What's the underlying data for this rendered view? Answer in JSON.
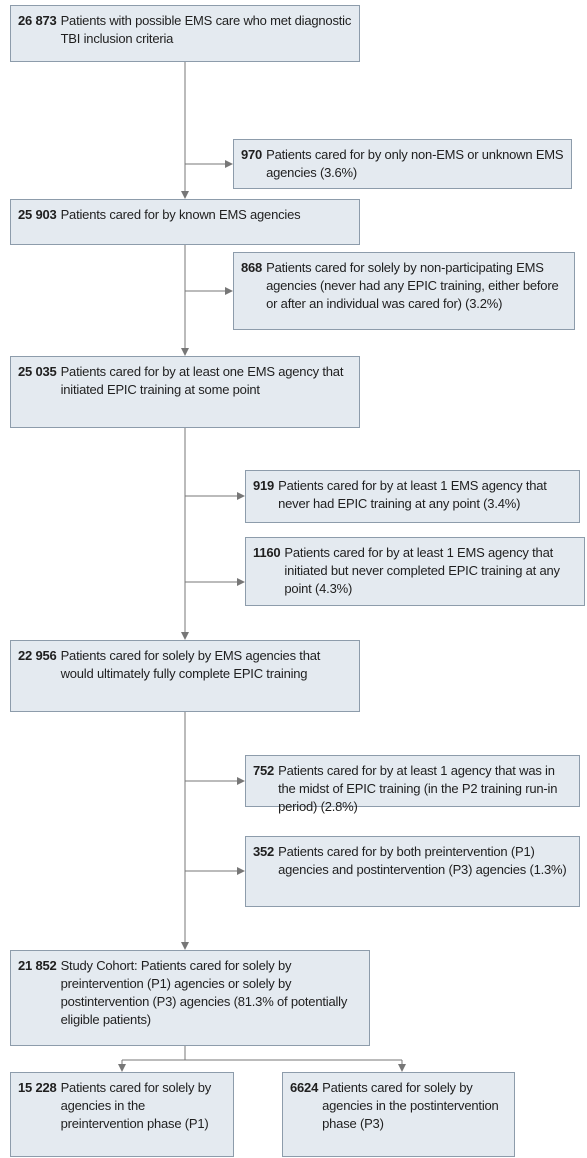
{
  "nodes": [
    {
      "count": "26 873",
      "text": "Patients with possible EMS care who met diagnostic TBI inclusion criteria"
    },
    {
      "count": "970",
      "text": "Patients cared for by only non-EMS or unknown EMS agencies (3.6%)"
    },
    {
      "count": "25 903",
      "text": "Patients cared for by known EMS agencies"
    },
    {
      "count": "868",
      "text": "Patients cared for solely by non-participating EMS agencies (never had any EPIC training, either before or after an individual was cared for) (3.2%)"
    },
    {
      "count": "25 035",
      "text": "Patients cared for by at least one EMS agency that initiated EPIC training at some point"
    },
    {
      "count": "919",
      "text": "Patients cared for by at least 1 EMS agency that never had EPIC training at any point (3.4%)"
    },
    {
      "count": "1160",
      "text": "Patients cared for by at least 1 EMS agency that initiated but never completed EPIC training at any point (4.3%)"
    },
    {
      "count": "22 956",
      "text": "Patients cared for solely by EMS agencies that would ultimately fully complete EPIC training"
    },
    {
      "count": "752",
      "text": "Patients cared for by at least 1 agency that was in the midst of EPIC training (in the P2 training run-in period) (2.8%)"
    },
    {
      "count": "352",
      "text": "Patients cared for by both preintervention (P1) agencies and postintervention (P3) agencies (1.3%)"
    },
    {
      "count": "21 852",
      "text": "Study Cohort: Patients cared for solely by preintervention (P1) agencies or solely by postintervention (P3) agencies (81.3% of potentially eligible patients)"
    },
    {
      "count": "15 228",
      "text": "Patients cared for solely by agencies in the preintervention phase (P1)"
    },
    {
      "count": "6624",
      "text": "Patients cared for solely by agencies in the postintervention phase (P3)"
    }
  ]
}
